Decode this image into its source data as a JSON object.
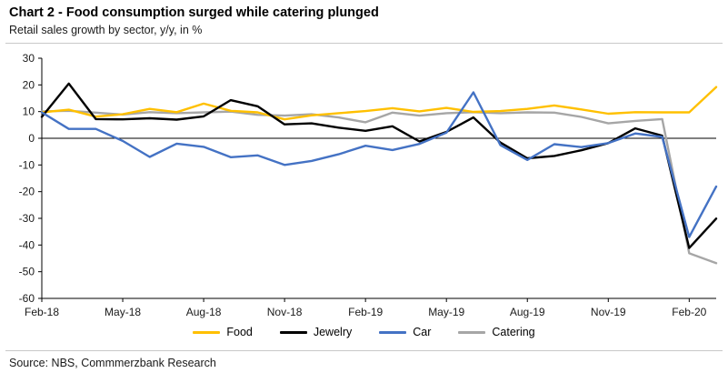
{
  "header": {
    "title": "Chart 2 - Food consumption surged while catering plunged",
    "subtitle": "Retail sales growth by sector, y/y, in %"
  },
  "footer": {
    "source": "Source: NBS, Commmerzbank Research"
  },
  "chart_data": {
    "type": "line",
    "title": "Chart 2 - Food consumption surged while catering plunged",
    "subtitle": "Retail sales growth by sector, y/y, in %",
    "xlabel": "",
    "ylabel": "",
    "ylim": [
      -60,
      30
    ],
    "y_ticks": [
      30,
      20,
      10,
      0,
      -10,
      -20,
      -30,
      -40,
      -50,
      -60
    ],
    "grid": false,
    "zero_line": true,
    "legend_position": "bottom",
    "x_tick_labels": [
      "Feb-18",
      "May-18",
      "Aug-18",
      "Nov-18",
      "Feb-19",
      "May-19",
      "Aug-19",
      "Nov-19",
      "Feb-20"
    ],
    "x_tick_indices": [
      0,
      3,
      6,
      9,
      12,
      15,
      18,
      21,
      24
    ],
    "categories": [
      "Feb-18",
      "Mar-18",
      "Apr-18",
      "May-18",
      "Jun-18",
      "Jul-18",
      "Aug-18",
      "Sep-18",
      "Oct-18",
      "Nov-18",
      "Dec-18",
      "Jan-19",
      "Feb-19",
      "Mar-19",
      "Apr-19",
      "May-19",
      "Jun-19",
      "Jul-19",
      "Aug-19",
      "Sep-19",
      "Oct-19",
      "Nov-19",
      "Dec-19",
      "Jan-20",
      "Feb-20",
      "Mar-20"
    ],
    "series": [
      {
        "name": "Food",
        "color": "#FFC000",
        "values": [
          9.7,
          10.7,
          8.1,
          9.0,
          11.0,
          9.8,
          13.0,
          10.3,
          9.7,
          7.1,
          8.6,
          9.4,
          10.2,
          11.3,
          10.1,
          11.4,
          9.9,
          10.2,
          11.0,
          12.3,
          10.8,
          9.2,
          9.8,
          9.7,
          9.7,
          19.2
        ]
      },
      {
        "name": "Jewelry",
        "color": "#000000",
        "values": [
          8.0,
          20.5,
          7.2,
          7.1,
          7.5,
          7.0,
          8.2,
          14.3,
          12.0,
          5.2,
          5.6,
          4.0,
          2.8,
          4.5,
          -1.2,
          2.4,
          7.8,
          -1.6,
          -7.5,
          -6.6,
          -4.5,
          -1.8,
          3.7,
          1.0,
          -41.1,
          -30.1
        ]
      },
      {
        "name": "Car",
        "color": "#4472C4",
        "values": [
          9.7,
          3.5,
          3.5,
          -1.0,
          -7.0,
          -2.0,
          -3.2,
          -7.1,
          -6.4,
          -10.0,
          -8.5,
          -6.0,
          -2.8,
          -4.4,
          -2.1,
          2.1,
          17.2,
          -2.6,
          -8.1,
          -2.2,
          -3.3,
          -1.8,
          1.8,
          0.5,
          -37.0,
          -18.1
        ]
      },
      {
        "name": "Catering",
        "color": "#A6A6A6",
        "values": [
          10.1,
          10.3,
          9.6,
          8.9,
          9.8,
          9.4,
          9.7,
          10.0,
          8.8,
          8.5,
          9.0,
          7.8,
          6.0,
          9.6,
          8.5,
          9.4,
          9.8,
          9.4,
          9.7,
          9.6,
          8.0,
          5.6,
          6.5,
          7.2,
          -43.1,
          -46.8
        ]
      }
    ],
    "render_order": [
      3,
      0,
      1,
      2
    ]
  }
}
